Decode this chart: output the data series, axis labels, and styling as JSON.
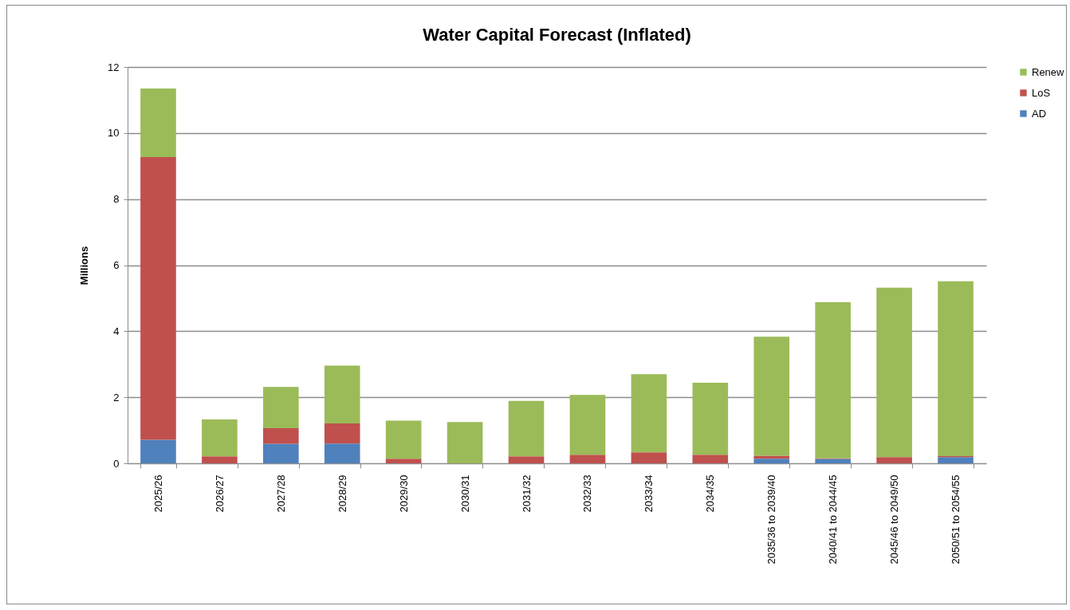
{
  "chart_data": {
    "type": "bar",
    "title": "Water Capital Forecast (Inflated)",
    "ylabel": "Millions",
    "categories": [
      "2025/26",
      "2026/27",
      "2027/28",
      "2028/29",
      "2029/30",
      "2030/31",
      "2031/32",
      "2032/33",
      "2033/34",
      "2034/35",
      "2035/36 to 2039/40",
      "2040/41 to 2044/45",
      "2045/46 to 2049/50",
      "2050/51 to 2054/55"
    ],
    "stacked": true,
    "series": [
      {
        "name": "AD",
        "color": "#4f81bd",
        "values": [
          0.71,
          0,
          0.59,
          0.6,
          0,
          0,
          0,
          0,
          0,
          0,
          0.14,
          0.13,
          0,
          0.19
        ]
      },
      {
        "name": "LoS",
        "color": "#c0504d",
        "values": [
          8.56,
          0.21,
          0.47,
          0.61,
          0.14,
          0,
          0.21,
          0.26,
          0.33,
          0.26,
          0.09,
          0.02,
          0.19,
          0.03
        ]
      },
      {
        "name": "Renew",
        "color": "#9bbb59",
        "values": [
          2.08,
          1.12,
          1.25,
          1.75,
          1.15,
          1.25,
          1.68,
          1.81,
          2.37,
          2.18,
          3.6,
          4.73,
          5.13,
          5.29
        ]
      }
    ],
    "ylim": [
      0,
      12
    ],
    "yticks": [
      0,
      2,
      4,
      6,
      8,
      10,
      12
    ],
    "grid": "y",
    "legend": "right"
  }
}
